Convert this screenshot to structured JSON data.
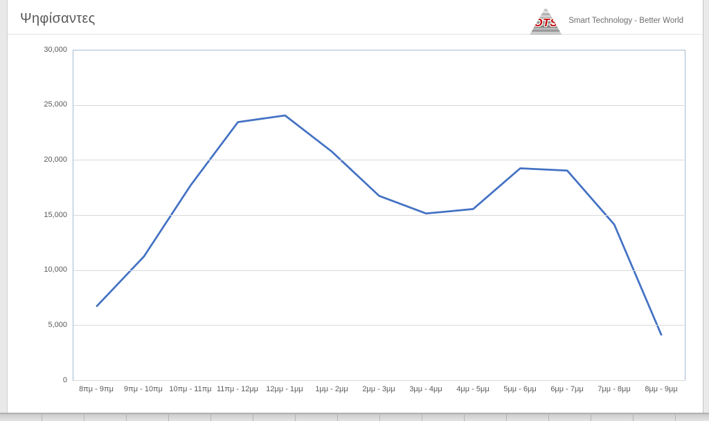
{
  "header": {
    "title": "Ψηφίσαντες",
    "logo_text": "OTS",
    "tagline": "Smart Technology - Better World"
  },
  "chart_data": {
    "type": "line",
    "title": "Ψηφίσαντες",
    "categories": [
      "8πμ - 9πμ",
      "9πμ - 10πμ",
      "10πμ - 11πμ",
      "11πμ - 12μμ",
      "12μμ - 1μμ",
      "1μμ - 2μμ",
      "2μμ - 3μμ",
      "3μμ - 4μμ",
      "4μμ - 5μμ",
      "5μμ - 6μμ",
      "6μμ - 7μμ",
      "7μμ - 8μμ",
      "8μμ - 9μμ"
    ],
    "series": [
      {
        "name": "Ψηφίσαντες",
        "values": [
          6800,
          11300,
          17800,
          23500,
          24100,
          20800,
          16800,
          15200,
          15600,
          19300,
          19100,
          14200,
          4200
        ]
      }
    ],
    "xlabel": "",
    "ylabel": "",
    "ylim": [
      0,
      30000
    ],
    "y_ticks": [
      0,
      5000,
      10000,
      15000,
      20000,
      25000,
      30000
    ],
    "y_tick_labels": [
      "0",
      "5,000",
      "10,000",
      "15,000",
      "20,000",
      "25,000",
      "30,000"
    ],
    "grid": true,
    "legend": "none",
    "line_color": "#4472C4",
    "axis_color": "#A4BBD1",
    "gridline_color": "#D9D9D9"
  }
}
